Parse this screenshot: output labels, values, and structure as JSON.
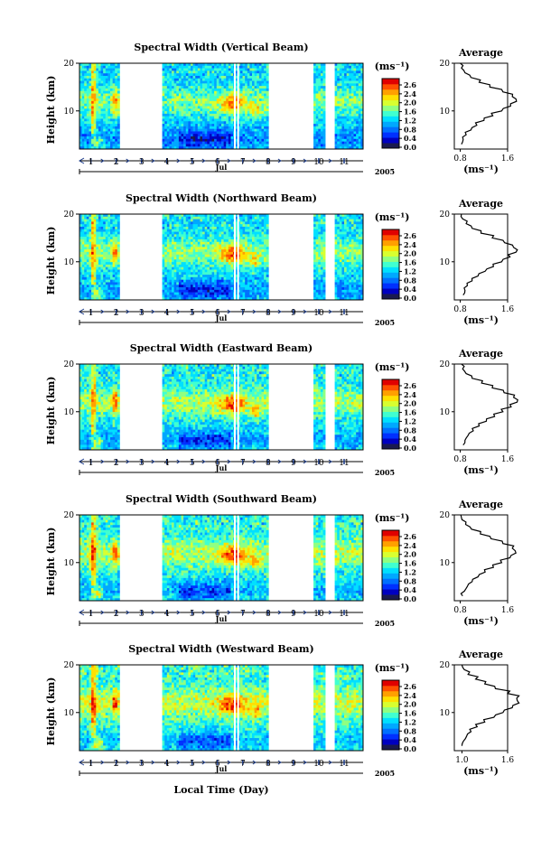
{
  "figure": {
    "xlabel": "Local Time (Day)",
    "month": "Jul",
    "year": "2005",
    "day_ticks": [
      "1",
      "2",
      "3",
      "4",
      "5",
      "6",
      "7",
      "8",
      "9",
      "10",
      "11"
    ]
  },
  "colorbar": {
    "unit": "(ms⁻¹)",
    "ticks": [
      "2.6",
      "2.4",
      "2.0",
      "1.6",
      "1.2",
      "0.8",
      "0.4",
      "0.0"
    ],
    "colors": [
      "#1a1a50",
      "#0000c0",
      "#0030ff",
      "#0070ff",
      "#00a8ff",
      "#00e0ff",
      "#40ffd0",
      "#90ff80",
      "#d8ff30",
      "#ffe000",
      "#ffa000",
      "#ff5000",
      "#e00000"
    ]
  },
  "chart_data": [
    {
      "type": "heatmap",
      "title": "Spectral Width (Vertical Beam)",
      "ylabel": "Height (km)",
      "yticks": [
        "20",
        "10"
      ],
      "ylim": [
        2,
        20
      ],
      "data_gaps_days": [
        [
          2.15,
          3.85
        ],
        [
          8.0,
          9.75
        ],
        [
          10.3,
          10.65
        ]
      ],
      "profile": {
        "title": "Average",
        "xticks": [
          "0.8",
          "1.6"
        ],
        "xlabel": "(ms⁻¹)",
        "height_km": [
          3,
          4,
          5,
          6,
          7,
          8,
          9,
          10,
          11,
          12,
          13,
          14,
          15,
          16,
          17,
          18,
          19,
          20
        ],
        "width_ms": [
          0.82,
          0.85,
          0.9,
          0.98,
          1.08,
          1.2,
          1.35,
          1.5,
          1.65,
          1.75,
          1.68,
          1.52,
          1.3,
          1.12,
          0.98,
          0.88,
          0.82,
          0.8
        ]
      }
    },
    {
      "type": "heatmap",
      "title": "Spectral Width (Northward Beam)",
      "ylabel": "Height (km)",
      "yticks": [
        "20",
        "10"
      ],
      "ylim": [
        2,
        20
      ],
      "data_gaps_days": [
        [
          2.15,
          3.85
        ],
        [
          8.0,
          9.75
        ],
        [
          10.3,
          10.65
        ]
      ],
      "profile": {
        "title": "Average",
        "xticks": [
          "0.8",
          "1.6"
        ],
        "xlabel": "(ms⁻¹)",
        "height_km": [
          3,
          4,
          5,
          6,
          7,
          8,
          9,
          10,
          11,
          12,
          13,
          14,
          15,
          16,
          17,
          18,
          19,
          20
        ],
        "width_ms": [
          0.85,
          0.88,
          0.92,
          1.0,
          1.1,
          1.22,
          1.36,
          1.5,
          1.64,
          1.74,
          1.7,
          1.55,
          1.34,
          1.15,
          1.0,
          0.9,
          0.84,
          0.82
        ]
      }
    },
    {
      "type": "heatmap",
      "title": "Spectral Width (Eastward Beam)",
      "ylabel": "Height (km)",
      "yticks": [
        "20",
        "10"
      ],
      "ylim": [
        2,
        20
      ],
      "data_gaps_days": [
        [
          2.15,
          3.85
        ],
        [
          8.0,
          9.75
        ],
        [
          10.3,
          10.65
        ]
      ],
      "profile": {
        "title": "Average",
        "xticks": [
          "0.8",
          "1.6"
        ],
        "xlabel": "(ms⁻¹)",
        "height_km": [
          3,
          4,
          5,
          6,
          7,
          8,
          9,
          10,
          11,
          12,
          13,
          14,
          15,
          16,
          17,
          18,
          19,
          20
        ],
        "width_ms": [
          0.85,
          0.88,
          0.93,
          1.02,
          1.12,
          1.24,
          1.38,
          1.52,
          1.66,
          1.76,
          1.7,
          1.54,
          1.34,
          1.16,
          1.0,
          0.9,
          0.84,
          0.82
        ]
      }
    },
    {
      "type": "heatmap",
      "title": "Spectral Width (Southward Beam)",
      "ylabel": "Height (km)",
      "yticks": [
        "20",
        "10"
      ],
      "ylim": [
        2,
        20
      ],
      "data_gaps_days": [
        [
          2.15,
          3.85
        ],
        [
          8.0,
          9.75
        ],
        [
          10.3,
          10.65
        ]
      ],
      "profile": {
        "title": "Average",
        "xticks": [
          "0.8",
          "1.6"
        ],
        "xlabel": "(ms⁻¹)",
        "height_km": [
          3,
          4,
          5,
          6,
          7,
          8,
          9,
          10,
          11,
          12,
          13,
          14,
          15,
          16,
          17,
          18,
          19,
          20
        ],
        "width_ms": [
          0.84,
          0.87,
          0.92,
          1.0,
          1.1,
          1.22,
          1.36,
          1.5,
          1.64,
          1.74,
          1.68,
          1.52,
          1.32,
          1.14,
          0.99,
          0.89,
          0.83,
          0.81
        ]
      }
    },
    {
      "type": "heatmap",
      "title": "Spectral Width (Westward Beam)",
      "ylabel": "Height (km)",
      "yticks": [
        "20",
        "10"
      ],
      "ylim": [
        2,
        20
      ],
      "data_gaps_days": [
        [
          2.15,
          3.85
        ],
        [
          8.0,
          9.75
        ],
        [
          10.3,
          10.65
        ]
      ],
      "profile": {
        "title": "Average",
        "xticks": [
          "1.0",
          "1.6"
        ],
        "xlabel": "(ms⁻¹)",
        "height_km": [
          3,
          4,
          5,
          6,
          7,
          8,
          9,
          10,
          11,
          12,
          13,
          14,
          15,
          16,
          17,
          18,
          19,
          20
        ],
        "width_ms": [
          1.0,
          1.02,
          1.06,
          1.12,
          1.2,
          1.3,
          1.42,
          1.54,
          1.66,
          1.75,
          1.72,
          1.6,
          1.44,
          1.3,
          1.18,
          1.08,
          1.03,
          1.0
        ]
      }
    }
  ]
}
